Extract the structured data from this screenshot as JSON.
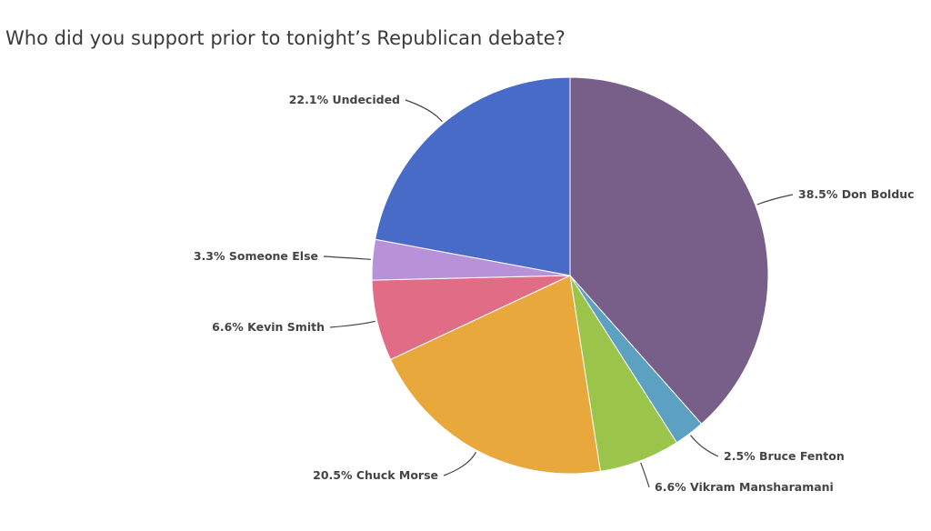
{
  "chart_data": {
    "type": "pie",
    "title": "Who did you support prior to tonight’s Republican debate?",
    "start": "12 o'clock",
    "direction": "clockwise",
    "slices": [
      {
        "label": "Don Bolduc",
        "value": 38.5,
        "display": "38.5% Don Bolduc",
        "color": "#775f8a"
      },
      {
        "label": "Bruce Fenton",
        "value": 2.5,
        "display": "2.5% Bruce Fenton",
        "color": "#5ca0c2"
      },
      {
        "label": "Vikram Mansharamani",
        "value": 6.6,
        "display": "6.6% Vikram Mansharamani",
        "color": "#9bc54a"
      },
      {
        "label": "Chuck Morse",
        "value": 20.5,
        "display": "20.5% Chuck Morse",
        "color": "#e9a83c"
      },
      {
        "label": "Kevin Smith",
        "value": 6.6,
        "display": "6.6% Kevin Smith",
        "color": "#e06c86"
      },
      {
        "label": "Someone Else",
        "value": 3.3,
        "display": "3.3% Someone Else",
        "color": "#b792d8"
      },
      {
        "label": "Undecided",
        "value": 22.1,
        "display": "22.1% Undecided",
        "color": "#476bc7"
      }
    ]
  }
}
